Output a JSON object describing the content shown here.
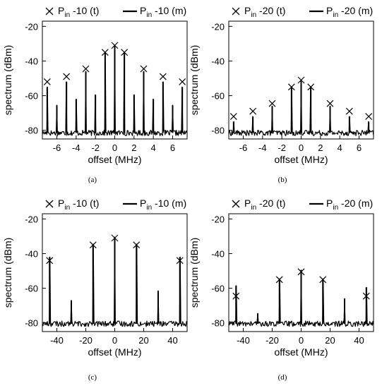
{
  "chart_data": [
    {
      "type": "line",
      "panel_caption": "(a)",
      "xlabel": "offset (MHz)",
      "ylabel": "spectrum (dBm)",
      "xlim": [
        -7.5,
        7.5
      ],
      "ylim": [
        -85,
        -17
      ],
      "xticks": [
        -6,
        -4,
        -2,
        0,
        2,
        4,
        6
      ],
      "yticks": [
        -80,
        -60,
        -40,
        -20
      ],
      "noise_floor": -81.5,
      "legend": [
        {
          "marker": "x",
          "prefix": "P",
          "sub": "in",
          "suffix": " -10 (t)"
        },
        {
          "marker": "line",
          "prefix": "P",
          "sub": "in",
          "suffix": " -10 (m)"
        }
      ],
      "series": [
        {
          "name": "Pin -10 (t)",
          "kind": "markers",
          "x": [
            -7,
            -5,
            -3,
            -1,
            0,
            1,
            3,
            5,
            7
          ],
          "y": [
            -52,
            -49,
            -44.5,
            -35,
            -31,
            -35,
            -44.5,
            -49,
            -52
          ]
        },
        {
          "name": "Pin -10 (m)",
          "kind": "spikes",
          "x": [
            -7,
            -6,
            -5,
            -4,
            -3,
            -2,
            -1,
            0,
            1,
            2,
            3,
            4,
            5,
            6,
            7
          ],
          "y": [
            -55,
            -65.5,
            -52,
            -62,
            -46,
            -59.5,
            -35.5,
            -31.5,
            -35.5,
            -59.5,
            -46,
            -62,
            -52,
            -65.5,
            -55
          ]
        }
      ]
    },
    {
      "type": "line",
      "panel_caption": "(b)",
      "xlabel": "offset (MHz)",
      "ylabel": "spectrum (dBm)",
      "xlim": [
        -7.5,
        7.5
      ],
      "ylim": [
        -85,
        -17
      ],
      "xticks": [
        -6,
        -4,
        -2,
        0,
        2,
        4,
        6
      ],
      "yticks": [
        -80,
        -60,
        -40,
        -20
      ],
      "noise_floor": -81.5,
      "legend": [
        {
          "marker": "x",
          "prefix": "P",
          "sub": "in",
          "suffix": " -20 (t)"
        },
        {
          "marker": "line",
          "prefix": "P",
          "sub": "in",
          "suffix": " -20 (m)"
        }
      ],
      "series": [
        {
          "name": "Pin -20 (t)",
          "kind": "markers",
          "x": [
            -7,
            -5,
            -3,
            -1,
            0,
            1,
            3,
            5,
            7
          ],
          "y": [
            -72,
            -69,
            -64.5,
            -55,
            -51,
            -55,
            -64.5,
            -69,
            -72
          ]
        },
        {
          "name": "Pin -20 (m)",
          "kind": "spikes",
          "x": [
            -7,
            -5,
            -3,
            -1,
            0,
            1,
            3,
            5,
            7
          ],
          "y": [
            -75,
            -72,
            -66,
            -55,
            -51,
            -55,
            -66,
            -72,
            -75
          ]
        }
      ]
    },
    {
      "type": "line",
      "panel_caption": "(c)",
      "xlabel": "offset (MHz)",
      "ylabel": "spectrum (dBm)",
      "xlim": [
        -50,
        50
      ],
      "ylim": [
        -85,
        -17
      ],
      "xticks": [
        -40,
        -20,
        0,
        20,
        40
      ],
      "yticks": [
        -80,
        -60,
        -40,
        -20
      ],
      "noise_floor": -80.5,
      "legend": [
        {
          "marker": "x",
          "prefix": "P",
          "sub": "in",
          "suffix": " -10 (t)"
        },
        {
          "marker": "line",
          "prefix": "P",
          "sub": "in",
          "suffix": " -10 (m)"
        }
      ],
      "series": [
        {
          "name": "Pin -10 (t)",
          "kind": "markers",
          "x": [
            -45,
            -15,
            0,
            15,
            45
          ],
          "y": [
            -44,
            -35,
            -31,
            -35,
            -44
          ]
        },
        {
          "name": "Pin -10 (m)",
          "kind": "spikes",
          "x": [
            -45,
            -30,
            -15,
            0,
            15,
            30,
            45
          ],
          "y": [
            -42,
            -67,
            -34.5,
            -30.5,
            -34.5,
            -61.5,
            -42
          ]
        }
      ]
    },
    {
      "type": "line",
      "panel_caption": "(d)",
      "xlabel": "offset (MHz)",
      "ylabel": "spectrum (dBm)",
      "xlim": [
        -50,
        50
      ],
      "ylim": [
        -85,
        -17
      ],
      "xticks": [
        -40,
        -20,
        0,
        20,
        40
      ],
      "yticks": [
        -80,
        -60,
        -40,
        -20
      ],
      "noise_floor": -80.5,
      "legend": [
        {
          "marker": "x",
          "prefix": "P",
          "sub": "in",
          "suffix": " -20 (t)"
        },
        {
          "marker": "line",
          "prefix": "P",
          "sub": "in",
          "suffix": " -20 (m)"
        }
      ],
      "series": [
        {
          "name": "Pin -20 (t)",
          "kind": "markers",
          "x": [
            -45,
            -15,
            0,
            15,
            45
          ],
          "y": [
            -64.5,
            -55,
            -50.5,
            -55,
            -64.5
          ]
        },
        {
          "name": "Pin -20 (m)",
          "kind": "spikes",
          "x": [
            -45,
            -30,
            -15,
            0,
            15,
            30,
            45
          ],
          "y": [
            -58.5,
            -74.5,
            -54.5,
            -49.5,
            -54.5,
            -66,
            -59.5
          ]
        }
      ]
    }
  ]
}
